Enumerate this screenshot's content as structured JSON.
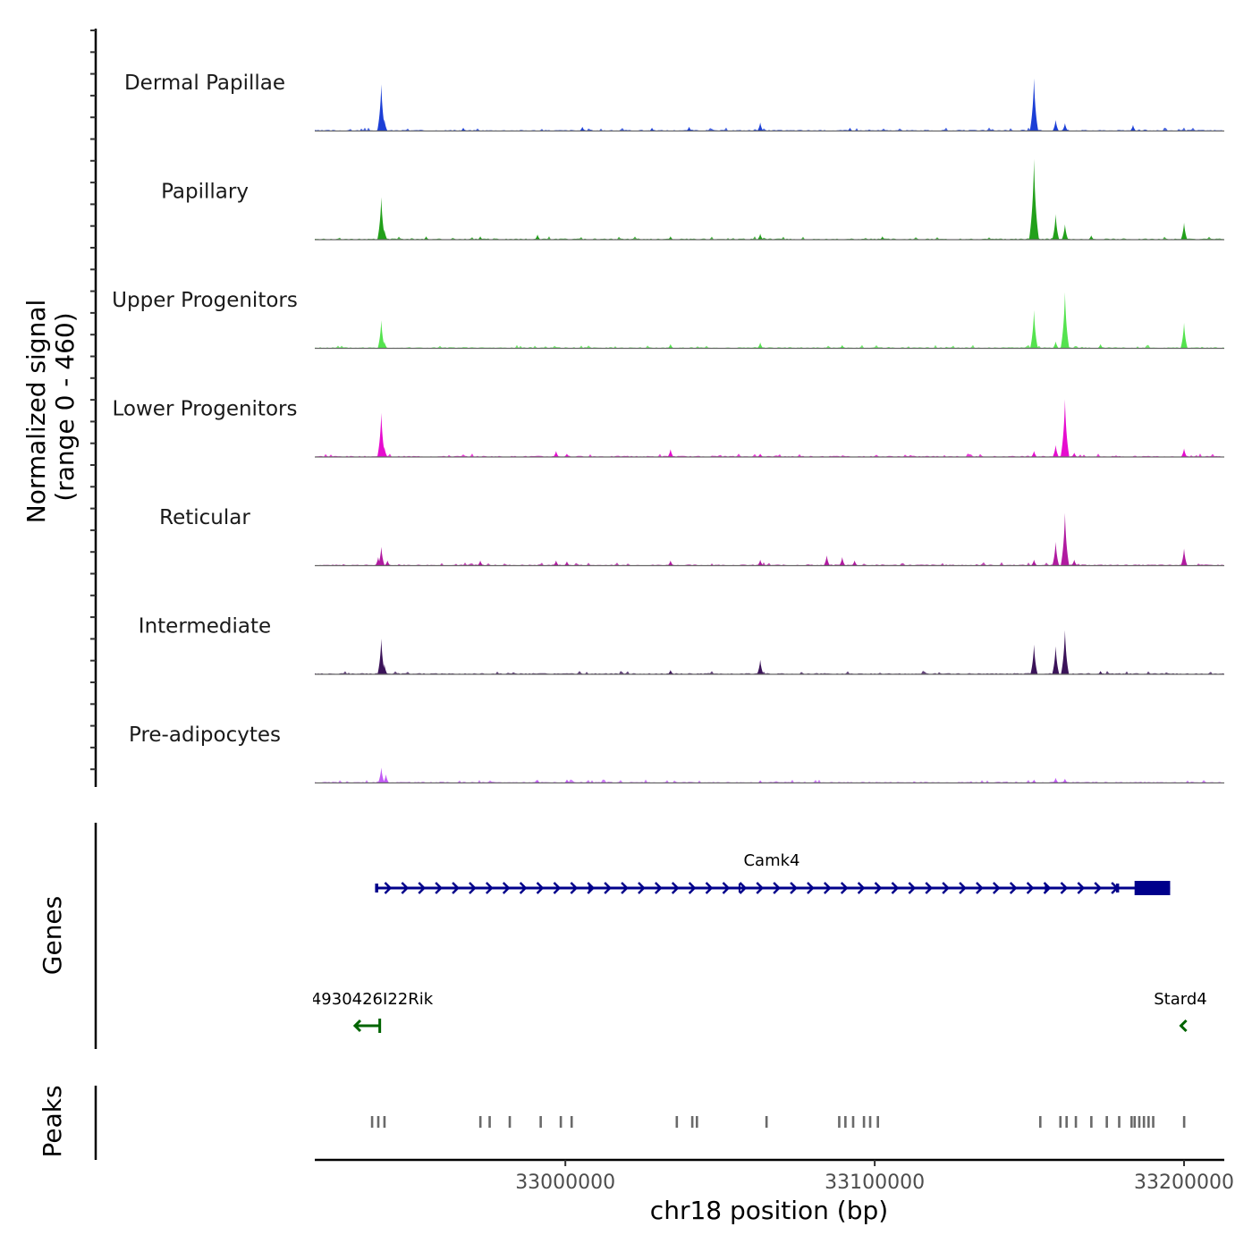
{
  "chart_data": {
    "type": "area",
    "title": "",
    "chromosome": "chr18",
    "xlabel": "chr18 position (bp)",
    "ylabel_line1": "Normalized signal",
    "ylabel_line2": "(range 0 - 460)",
    "ylim": [
      0,
      460
    ],
    "xlim": [
      32919000,
      33213000
    ],
    "x_ticks": [
      33000000,
      33100000,
      33200000
    ],
    "x_tick_labels": [
      "33000000",
      "33100000",
      "33200000"
    ],
    "genes_label": "Genes",
    "peaks_label": "Peaks",
    "tracks": [
      {
        "name": "Dermal Papillae",
        "color": "#1c3fd6",
        "peaks": [
          [
            32940500,
            0.55
          ],
          [
            32941500,
            0.14
          ],
          [
            33005500,
            0.05
          ],
          [
            33040000,
            0.05
          ],
          [
            33063000,
            0.1
          ],
          [
            33151500,
            0.62
          ],
          [
            33158500,
            0.13
          ],
          [
            33161500,
            0.09
          ],
          [
            33183500,
            0.07
          ],
          [
            33028000,
            0.04
          ],
          [
            32967000,
            0.04
          ],
          [
            33092000,
            0.04
          ]
        ]
      },
      {
        "name": "Papillary",
        "color": "#22a01a",
        "peaks": [
          [
            32940500,
            0.5
          ],
          [
            32941500,
            0.12
          ],
          [
            32955000,
            0.04
          ],
          [
            32972500,
            0.04
          ],
          [
            32991000,
            0.06
          ],
          [
            33034000,
            0.04
          ],
          [
            33063000,
            0.07
          ],
          [
            33102500,
            0.04
          ],
          [
            33151500,
            0.95
          ],
          [
            33158500,
            0.3
          ],
          [
            33161500,
            0.18
          ],
          [
            33170000,
            0.05
          ],
          [
            33200000,
            0.2
          ]
        ]
      },
      {
        "name": "Upper Progenitors",
        "color": "#54e34e",
        "peaks": [
          [
            32940500,
            0.33
          ],
          [
            32941500,
            0.08
          ],
          [
            33034000,
            0.05
          ],
          [
            33063000,
            0.07
          ],
          [
            33089500,
            0.04
          ],
          [
            33151500,
            0.45
          ],
          [
            33161500,
            0.66
          ],
          [
            33158500,
            0.08
          ],
          [
            33173000,
            0.05
          ],
          [
            33200000,
            0.3
          ]
        ]
      },
      {
        "name": "Lower Progenitors",
        "color": "#e60ccf",
        "peaks": [
          [
            32940500,
            0.52
          ],
          [
            32941500,
            0.12
          ],
          [
            32997000,
            0.07
          ],
          [
            33000500,
            0.04
          ],
          [
            33034000,
            0.09
          ],
          [
            33063000,
            0.04
          ],
          [
            33151500,
            0.07
          ],
          [
            33161500,
            0.68
          ],
          [
            33158500,
            0.14
          ],
          [
            33164500,
            0.05
          ],
          [
            33200000,
            0.1
          ]
        ]
      },
      {
        "name": "Reticular",
        "color": "#b01aa0",
        "peaks": [
          [
            32940500,
            0.22
          ],
          [
            32939500,
            0.1
          ],
          [
            32942500,
            0.06
          ],
          [
            32972500,
            0.06
          ],
          [
            32997000,
            0.06
          ],
          [
            33000500,
            0.05
          ],
          [
            33034000,
            0.06
          ],
          [
            33063000,
            0.07
          ],
          [
            33084500,
            0.12
          ],
          [
            33089500,
            0.1
          ],
          [
            33093500,
            0.06
          ],
          [
            33151500,
            0.07
          ],
          [
            33158500,
            0.28
          ],
          [
            33161500,
            0.62
          ],
          [
            33164500,
            0.07
          ],
          [
            33200000,
            0.2
          ]
        ]
      },
      {
        "name": "Intermediate",
        "color": "#3b1359",
        "peaks": [
          [
            32940500,
            0.42
          ],
          [
            32941500,
            0.12
          ],
          [
            33034000,
            0.05
          ],
          [
            33063000,
            0.17
          ],
          [
            33151500,
            0.35
          ],
          [
            33158500,
            0.33
          ],
          [
            33161500,
            0.52
          ],
          [
            33173000,
            0.04
          ]
        ]
      },
      {
        "name": "Pre-adipocytes",
        "color": "#c25bf5",
        "peaks": [
          [
            32940500,
            0.18
          ],
          [
            32942000,
            0.1
          ],
          [
            32991000,
            0.04
          ],
          [
            33000500,
            0.04
          ],
          [
            33063000,
            0.03
          ],
          [
            33151500,
            0.04
          ],
          [
            33158500,
            0.06
          ],
          [
            33161500,
            0.05
          ]
        ]
      }
    ],
    "genes": [
      {
        "name": "Camk4",
        "strand": "+",
        "start": 32938500,
        "end": 33195500,
        "color": "#00008b",
        "exons": [
          [
            32938500,
            32939500
          ],
          [
            33007500,
            33008000
          ],
          [
            33056000,
            33056500
          ],
          [
            33155000,
            33155500
          ],
          [
            33178000,
            33179000
          ],
          [
            33184000,
            33195500
          ]
        ]
      },
      {
        "name": "4930426I22Rik",
        "strand": "-",
        "start": 32932000,
        "end": 32940000,
        "color": "#006400",
        "exons": []
      },
      {
        "name": "Stard4",
        "strand": "-",
        "start": 33199000,
        "end": 33200500,
        "color": "#006400",
        "exons": []
      }
    ],
    "peak_regions": [
      32937500,
      32939500,
      32941500,
      32972500,
      32975500,
      32982000,
      32992000,
      32998500,
      33002000,
      33036000,
      33041000,
      33042500,
      33065000,
      33088500,
      33090500,
      33093000,
      33096500,
      33098500,
      33101000,
      33153500,
      33160000,
      33162000,
      33165000,
      33170000,
      33175000,
      33179000,
      33183000,
      33184000,
      33185500,
      33187000,
      33188500,
      33190000,
      33200000
    ]
  }
}
